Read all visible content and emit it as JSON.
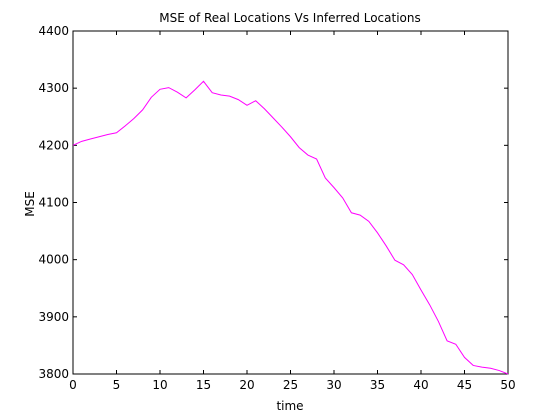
{
  "chart_data": {
    "type": "line",
    "title": "MSE of Real Locations Vs Inferred Locations",
    "xlabel": "time",
    "ylabel": "MSE",
    "xlim": [
      0,
      50
    ],
    "ylim": [
      3800,
      4400
    ],
    "xticks": [
      0,
      5,
      10,
      15,
      20,
      25,
      30,
      35,
      40,
      45,
      50
    ],
    "yticks": [
      3800,
      3900,
      4000,
      4100,
      4200,
      4300,
      4400
    ],
    "grid": false,
    "series": [
      {
        "color": "#ff00ff",
        "x": [
          0,
          1,
          2,
          3,
          4,
          5,
          6,
          7,
          8,
          9,
          10,
          11,
          12,
          13,
          14,
          15,
          16,
          17,
          18,
          19,
          20,
          21,
          22,
          23,
          24,
          25,
          26,
          27,
          28,
          29,
          30,
          31,
          32,
          33,
          34,
          35,
          36,
          37,
          38,
          39,
          40,
          41,
          42,
          43,
          44,
          45,
          46,
          47,
          48,
          49,
          50
        ],
        "values": [
          4200,
          4207,
          4211,
          4215,
          4219,
          4222,
          4234,
          4247,
          4262,
          4284,
          4298,
          4301,
          4293,
          4283,
          4297,
          4312,
          4292,
          4288,
          4286,
          4280,
          4270,
          4278,
          4264,
          4248,
          4232,
          4215,
          4196,
          4183,
          4176,
          4143,
          4126,
          4108,
          4082,
          4078,
          4067,
          4047,
          4024,
          3999,
          3991,
          3974,
          3947,
          3921,
          3892,
          3858,
          3852,
          3829,
          3815,
          3812,
          3810,
          3806,
          3800
        ]
      }
    ]
  }
}
